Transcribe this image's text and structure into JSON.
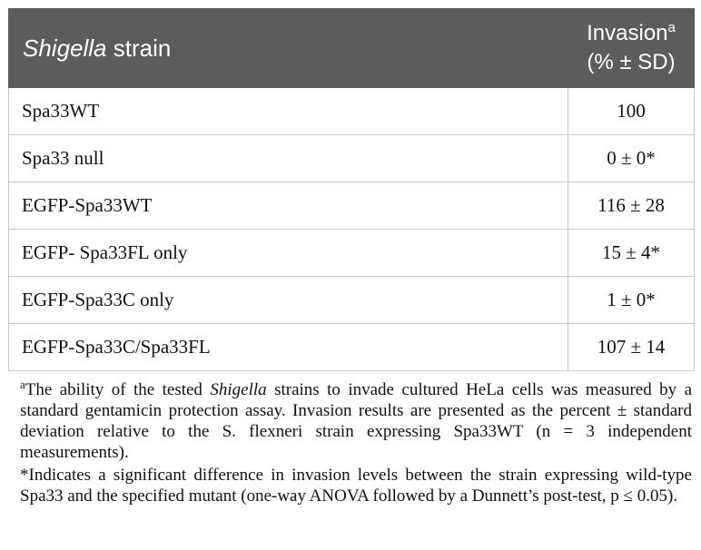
{
  "header": {
    "col1_italic": "Shigella",
    "col1_rest": " strain",
    "col2_line1": "Invasion",
    "col2_sup": "a",
    "col2_line2": "(% ± SD)"
  },
  "rows": [
    {
      "strain": "Spa33WT",
      "invasion": "100"
    },
    {
      "strain": "Spa33 null",
      "invasion": "0 ± 0*"
    },
    {
      "strain": "EGFP-Spa33WT",
      "invasion": "116 ± 28"
    },
    {
      "strain": "EGFP- Spa33FL only",
      "invasion": "15 ± 4*"
    },
    {
      "strain": "EGFP-Spa33C only",
      "invasion": "1 ± 0*"
    },
    {
      "strain": "EGFP-Spa33C/Spa33FL",
      "invasion": "107 ± 14"
    }
  ],
  "footnotes": {
    "a_mark": "a",
    "a_text_1": "The ability of the tested ",
    "a_italic": "Shigella",
    "a_text_2": " strains to invade cultured HeLa cells was measured by a standard gentamicin protection assay. Invasion results are presented as the percent ± standard deviation relative to the S. flexneri strain expressing Spa33WT (n = 3 independent measurements).",
    "star_text": "*Indicates a significant difference in invasion levels between the strain expressing wild-type Spa33 and the specified mutant (one-way ANOVA followed by a Dunnett’s post-test, p ≤ 0.05)."
  }
}
